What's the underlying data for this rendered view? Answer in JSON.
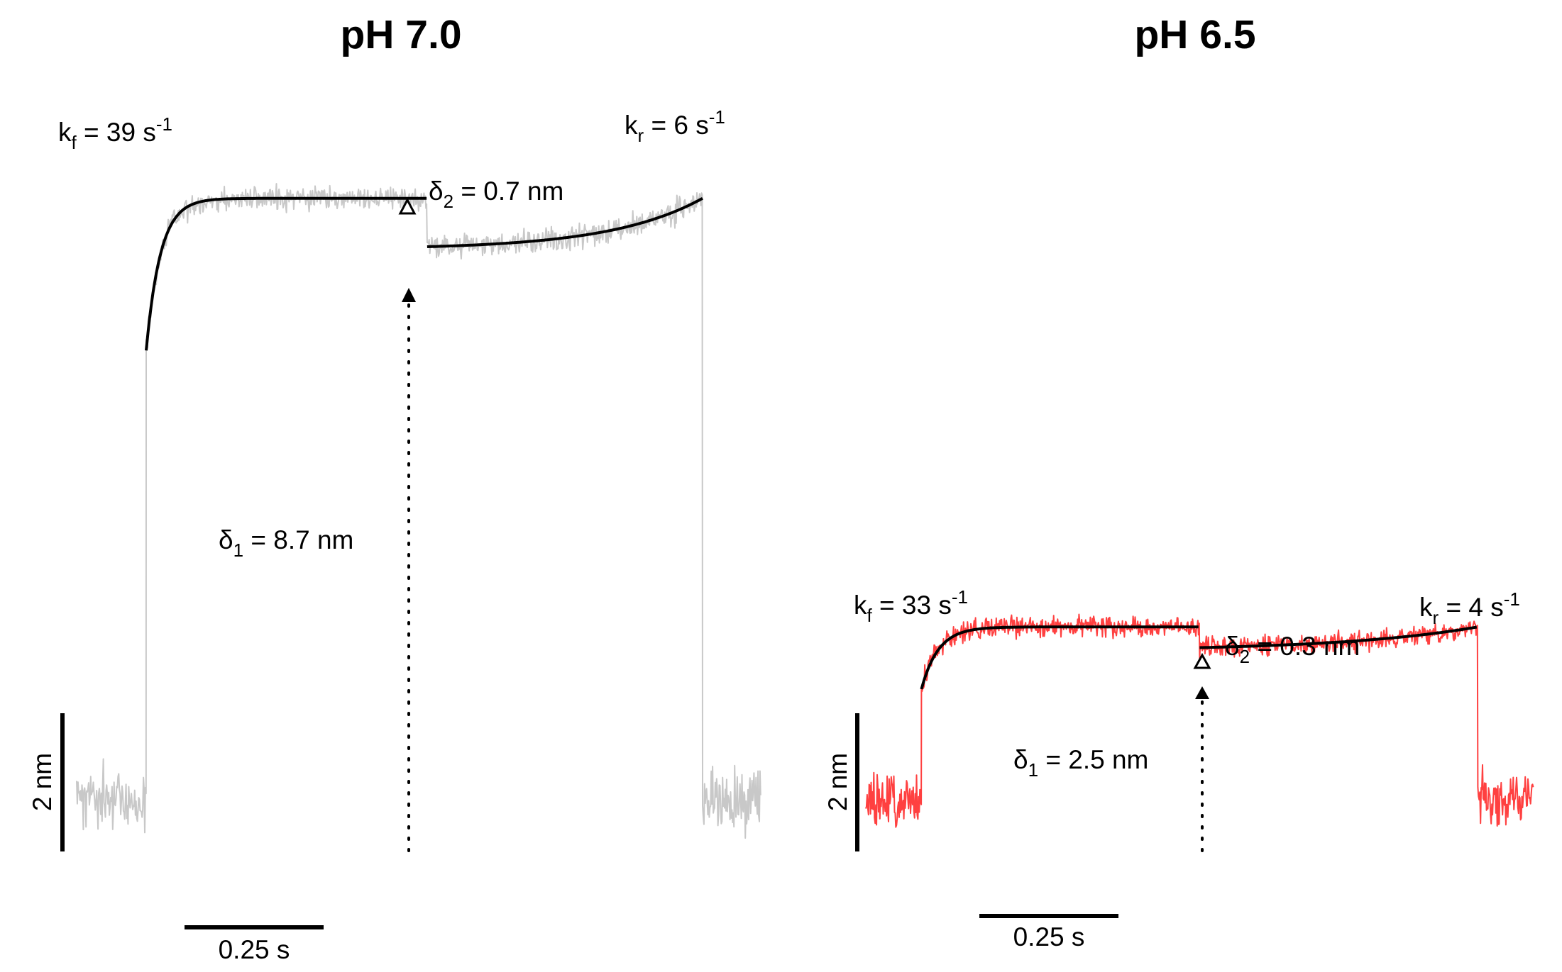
{
  "chart_data": [
    {
      "type": "line",
      "title": "pH 7.0",
      "series": [
        {
          "color": "#c8c8c8",
          "segments": [
            {
              "phase": "baseline",
              "t": [
                0.0,
                0.125
              ],
              "y_mean": 0.0
            },
            {
              "phase": "rising",
              "t": [
                0.125,
                0.63
              ],
              "y_start": 8.2,
              "y_end": 8.7
            },
            {
              "phase": "second",
              "t": [
                0.63,
                1.125
              ],
              "y_start": 8.0,
              "y_end": 8.7
            },
            {
              "phase": "baseline",
              "t": [
                1.125,
                1.23
              ],
              "y_mean": 0.0
            }
          ]
        }
      ],
      "fits": [
        {
          "name": "forward",
          "k": 39,
          "t": [
            0.125,
            0.63
          ],
          "y_start": 6.5,
          "y_end": 8.7
        },
        {
          "name": "reverse",
          "k": 6,
          "t": [
            0.63,
            1.125
          ],
          "y_start": 8.0,
          "y_end": 8.7
        }
      ],
      "labels": {
        "kf": {
          "main": "k",
          "sub": "f",
          "rest": " = 39 s",
          "sup": "-1"
        },
        "kr": {
          "main": "k",
          "sub": "r",
          "rest": " = 6 s",
          "sup": "-1"
        },
        "d2": {
          "main": "δ",
          "sub": "2",
          "rest": " = 0.7 nm"
        },
        "d1": {
          "main": "δ",
          "sub": "1",
          "rest": " = 8.7 nm"
        }
      },
      "scalebars": {
        "y_label": "2 nm",
        "y_value": 2,
        "x_label": "0.25 s",
        "x_value": 0.25
      }
    },
    {
      "type": "line",
      "title": "pH 6.5",
      "series": [
        {
          "color": "#ff4040",
          "segments": [
            {
              "phase": "baseline",
              "t": [
                0.0,
                0.1
              ],
              "y_mean": 0.0
            },
            {
              "phase": "rising",
              "t": [
                0.1,
                0.6
              ],
              "y_start": 2.2,
              "y_end": 2.5
            },
            {
              "phase": "second",
              "t": [
                0.6,
                1.1
              ],
              "y_start": 2.2,
              "y_end": 2.5
            },
            {
              "phase": "baseline",
              "t": [
                1.1,
                1.2
              ],
              "y_mean": 0.0
            }
          ]
        }
      ],
      "fits": [
        {
          "name": "forward",
          "k": 33,
          "t": [
            0.1,
            0.6
          ],
          "y_start": 1.6,
          "y_end": 2.5
        },
        {
          "name": "reverse",
          "k": 4,
          "t": [
            0.6,
            1.1
          ],
          "y_start": 2.2,
          "y_end": 2.5
        }
      ],
      "labels": {
        "kf": {
          "main": "k",
          "sub": "f",
          "rest": " = 33 s",
          "sup": "-1"
        },
        "kr": {
          "main": "k",
          "sub": "r",
          "rest": " = 4 s",
          "sup": "-1"
        },
        "d2": {
          "main": "δ",
          "sub": "2",
          "rest": " = 0.3 nm"
        },
        "d1": {
          "main": "δ",
          "sub": "1",
          "rest": " = 2.5 nm"
        }
      },
      "scalebars": {
        "y_label": "2 nm",
        "y_value": 2,
        "x_label": "0.25 s",
        "x_value": 0.25
      }
    }
  ]
}
